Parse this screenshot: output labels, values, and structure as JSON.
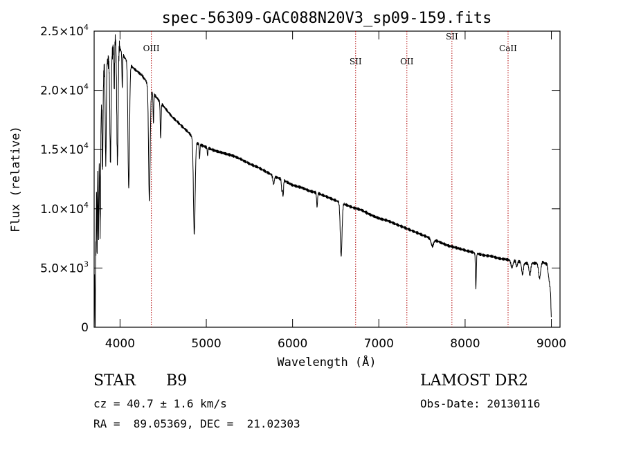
{
  "chart_data": {
    "type": "line",
    "title": "spec-56309-GAC088N20V3_sp09-159.fits",
    "xlabel": "Wavelength (Å)",
    "ylabel": "Flux (relative)",
    "xlim": [
      3700,
      9100
    ],
    "ylim": [
      0,
      25000
    ],
    "x_ticks": [
      {
        "value": 4000,
        "label": "4000"
      },
      {
        "value": 5000,
        "label": "5000"
      },
      {
        "value": 6000,
        "label": "6000"
      },
      {
        "value": 7000,
        "label": "7000"
      },
      {
        "value": 8000,
        "label": "8000"
      },
      {
        "value": 9000,
        "label": "9000"
      }
    ],
    "y_ticks": [
      {
        "value": 0,
        "mantissa": "0",
        "exp": ""
      },
      {
        "value": 5000,
        "mantissa": "5.0×10",
        "exp": "3"
      },
      {
        "value": 10000,
        "mantissa": "1.0×10",
        "exp": "4"
      },
      {
        "value": 15000,
        "mantissa": "1.5×10",
        "exp": "4"
      },
      {
        "value": 20000,
        "mantissa": "2.0×10",
        "exp": "4"
      },
      {
        "value": 25000,
        "mantissa": "2.5×10",
        "exp": "4"
      }
    ],
    "line_markers": [
      {
        "label": "OIII",
        "wavelength": 4363,
        "label_flux": 23300
      },
      {
        "label": "SII",
        "wavelength": 6731,
        "label_flux": 22200
      },
      {
        "label": "OII",
        "wavelength": 7325,
        "label_flux": 22200
      },
      {
        "label": "SII",
        "wavelength": 7847,
        "label_flux": 24300
      },
      {
        "label": "CaII",
        "wavelength": 8498,
        "label_flux": 23300
      }
    ],
    "continuum": [
      [
        3705,
        6500
      ],
      [
        3720,
        13500
      ],
      [
        3760,
        15500
      ],
      [
        3800,
        20500
      ],
      [
        3850,
        22500
      ],
      [
        3900,
        23500
      ],
      [
        3950,
        24000
      ],
      [
        4000,
        23500
      ],
      [
        4050,
        22800
      ],
      [
        4100,
        22300
      ],
      [
        4150,
        21900
      ],
      [
        4200,
        21600
      ],
      [
        4250,
        21300
      ],
      [
        4300,
        20800
      ],
      [
        4350,
        20000
      ],
      [
        4400,
        19600
      ],
      [
        4500,
        18700
      ],
      [
        4600,
        17800
      ],
      [
        4700,
        17100
      ],
      [
        4800,
        16400
      ],
      [
        4900,
        15500
      ],
      [
        5000,
        15200
      ],
      [
        5100,
        14900
      ],
      [
        5200,
        14700
      ],
      [
        5300,
        14500
      ],
      [
        5400,
        14200
      ],
      [
        5500,
        13800
      ],
      [
        5600,
        13500
      ],
      [
        5700,
        13100
      ],
      [
        5800,
        12700
      ],
      [
        5900,
        12400
      ],
      [
        6000,
        12000
      ],
      [
        6100,
        11800
      ],
      [
        6200,
        11500
      ],
      [
        6300,
        11300
      ],
      [
        6400,
        11000
      ],
      [
        6500,
        10700
      ],
      [
        6600,
        10400
      ],
      [
        6700,
        10100
      ],
      [
        6800,
        9900
      ],
      [
        6900,
        9500
      ],
      [
        7000,
        9200
      ],
      [
        7100,
        9000
      ],
      [
        7200,
        8700
      ],
      [
        7300,
        8400
      ],
      [
        7400,
        8100
      ],
      [
        7500,
        7800
      ],
      [
        7600,
        7500
      ],
      [
        7700,
        7200
      ],
      [
        7800,
        6900
      ],
      [
        7900,
        6700
      ],
      [
        8000,
        6500
      ],
      [
        8100,
        6300
      ],
      [
        8200,
        6100
      ],
      [
        8300,
        6000
      ],
      [
        8400,
        5800
      ],
      [
        8500,
        5700
      ],
      [
        8600,
        5600
      ],
      [
        8700,
        5400
      ],
      [
        8800,
        5400
      ],
      [
        8900,
        5500
      ],
      [
        8950,
        5300
      ],
      [
        8990,
        3000
      ],
      [
        9000,
        500
      ]
    ],
    "absorption_features": [
      {
        "center": 3712,
        "depth": 9500,
        "width": 4
      },
      {
        "center": 3722,
        "depth": 6000,
        "width": 3
      },
      {
        "center": 3734,
        "depth": 7500,
        "width": 3
      },
      {
        "center": 3750,
        "depth": 7000,
        "width": 4
      },
      {
        "center": 3770,
        "depth": 8500,
        "width": 5
      },
      {
        "center": 3798,
        "depth": 7500,
        "width": 5
      },
      {
        "center": 3835,
        "depth": 8500,
        "width": 6
      },
      {
        "center": 3889,
        "depth": 8500,
        "width": 7
      },
      {
        "center": 3933,
        "depth": 4000,
        "width": 4
      },
      {
        "center": 3970,
        "depth": 10500,
        "width": 8
      },
      {
        "center": 4026,
        "depth": 3000,
        "width": 4
      },
      {
        "center": 4101,
        "depth": 10500,
        "width": 9
      },
      {
        "center": 4340,
        "depth": 9500,
        "width": 9
      },
      {
        "center": 4387,
        "depth": 2500,
        "width": 4
      },
      {
        "center": 4471,
        "depth": 3000,
        "width": 5
      },
      {
        "center": 4861,
        "depth": 8000,
        "width": 10
      },
      {
        "center": 4922,
        "depth": 1200,
        "width": 4
      },
      {
        "center": 5015,
        "depth": 700,
        "width": 4
      },
      {
        "center": 5780,
        "depth": 700,
        "width": 8
      },
      {
        "center": 5876,
        "depth": 1000,
        "width": 5
      },
      {
        "center": 5890,
        "depth": 1400,
        "width": 5
      },
      {
        "center": 6284,
        "depth": 1200,
        "width": 5
      },
      {
        "center": 6563,
        "depth": 4500,
        "width": 10
      },
      {
        "center": 7620,
        "depth": 600,
        "width": 14
      },
      {
        "center": 8125,
        "depth": 2900,
        "width": 5
      },
      {
        "center": 8543,
        "depth": 600,
        "width": 12
      },
      {
        "center": 8598,
        "depth": 500,
        "width": 8
      },
      {
        "center": 8665,
        "depth": 1000,
        "width": 10
      },
      {
        "center": 8750,
        "depth": 1000,
        "width": 10
      },
      {
        "center": 8863,
        "depth": 1300,
        "width": 12
      }
    ],
    "grid": false,
    "legend": "none"
  },
  "info": {
    "object_type": "STAR",
    "spectral_class": "B9",
    "survey": "LAMOST DR2",
    "cz_label": "cz = ",
    "cz_value": "40.7",
    "pm_symbol": "±",
    "cz_error": "1.6",
    "cz_unit": "km/s",
    "obs_label": "Obs-Date:",
    "obs_date": "20130116",
    "ra_label": "RA =",
    "ra_value": "89.05369",
    "dec_label": "DEC =",
    "dec_value": "21.02303"
  }
}
